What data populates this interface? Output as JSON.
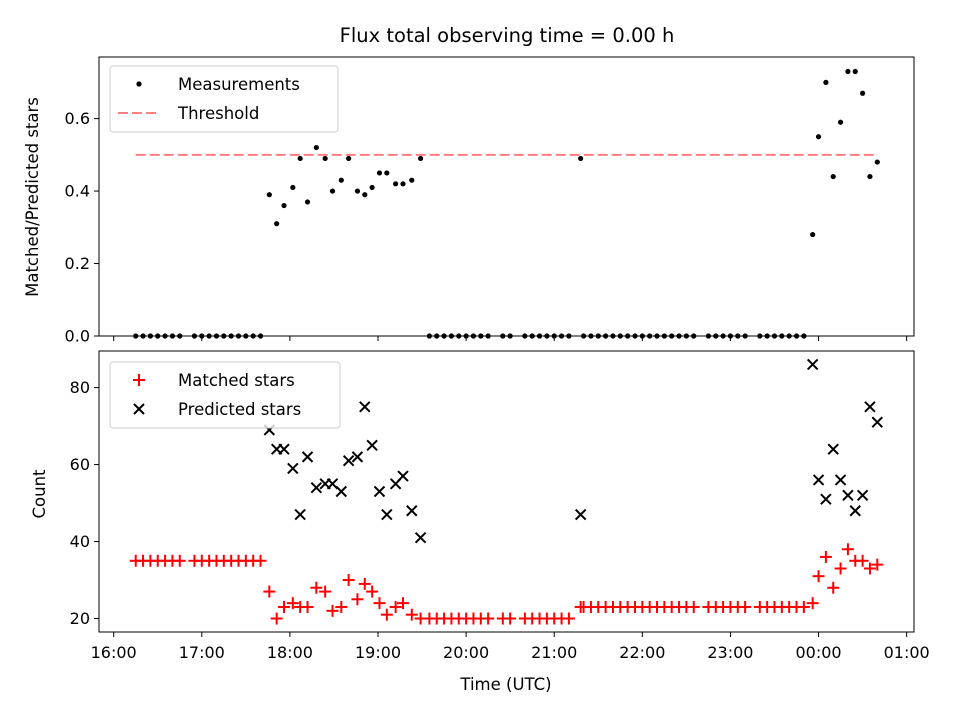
{
  "chart_data": [
    {
      "type": "scatter",
      "title": "Flux total observing time = 0.00 h",
      "xlabel": "",
      "ylabel": "Matched/Predicted stars",
      "ylim": [
        0,
        0.77
      ],
      "yticks": [
        0.0,
        0.2,
        0.4,
        0.6
      ],
      "xlim": [
        "15:50",
        "01:05"
      ],
      "grid": false,
      "legend": "top-left",
      "series": [
        {
          "name": "Measurements",
          "marker": "dot",
          "color": "#000000",
          "points": [
            [
              "16:15",
              0
            ],
            [
              "16:20",
              0
            ],
            [
              "16:25",
              0
            ],
            [
              "16:30",
              0
            ],
            [
              "16:35",
              0
            ],
            [
              "16:40",
              0
            ],
            [
              "16:45",
              0
            ],
            [
              "16:55",
              0
            ],
            [
              "17:00",
              0
            ],
            [
              "17:05",
              0
            ],
            [
              "17:10",
              0
            ],
            [
              "17:15",
              0
            ],
            [
              "17:20",
              0
            ],
            [
              "17:25",
              0
            ],
            [
              "17:30",
              0
            ],
            [
              "17:35",
              0
            ],
            [
              "17:40",
              0
            ],
            [
              "17:46",
              0.39
            ],
            [
              "17:51",
              0.31
            ],
            [
              "17:56",
              0.36
            ],
            [
              "18:02",
              0.41
            ],
            [
              "18:07",
              0.49
            ],
            [
              "18:12",
              0.37
            ],
            [
              "18:18",
              0.52
            ],
            [
              "18:24",
              0.49
            ],
            [
              "18:29",
              0.4
            ],
            [
              "18:35",
              0.43
            ],
            [
              "18:40",
              0.49
            ],
            [
              "18:46",
              0.4
            ],
            [
              "18:51",
              0.39
            ],
            [
              "18:56",
              0.41
            ],
            [
              "19:01",
              0.45
            ],
            [
              "19:06",
              0.45
            ],
            [
              "19:12",
              0.42
            ],
            [
              "19:17",
              0.42
            ],
            [
              "19:23",
              0.43
            ],
            [
              "19:29",
              0.49
            ],
            [
              "19:35",
              0
            ],
            [
              "19:40",
              0
            ],
            [
              "19:45",
              0
            ],
            [
              "19:50",
              0
            ],
            [
              "19:55",
              0
            ],
            [
              "20:00",
              0
            ],
            [
              "20:05",
              0
            ],
            [
              "20:10",
              0
            ],
            [
              "20:15",
              0
            ],
            [
              "20:25",
              0
            ],
            [
              "20:30",
              0
            ],
            [
              "20:40",
              0
            ],
            [
              "20:45",
              0
            ],
            [
              "20:50",
              0
            ],
            [
              "20:55",
              0
            ],
            [
              "21:00",
              0
            ],
            [
              "21:05",
              0
            ],
            [
              "21:10",
              0
            ],
            [
              "21:18",
              0.49
            ],
            [
              "21:20",
              0
            ],
            [
              "21:25",
              0
            ],
            [
              "21:30",
              0
            ],
            [
              "21:35",
              0
            ],
            [
              "21:40",
              0
            ],
            [
              "21:45",
              0
            ],
            [
              "21:50",
              0
            ],
            [
              "21:55",
              0
            ],
            [
              "22:00",
              0
            ],
            [
              "22:05",
              0
            ],
            [
              "22:10",
              0
            ],
            [
              "22:15",
              0
            ],
            [
              "22:20",
              0
            ],
            [
              "22:25",
              0
            ],
            [
              "22:30",
              0
            ],
            [
              "22:35",
              0
            ],
            [
              "22:45",
              0
            ],
            [
              "22:50",
              0
            ],
            [
              "22:55",
              0
            ],
            [
              "23:00",
              0
            ],
            [
              "23:05",
              0
            ],
            [
              "23:10",
              0
            ],
            [
              "23:20",
              0
            ],
            [
              "23:25",
              0
            ],
            [
              "23:30",
              0
            ],
            [
              "23:35",
              0
            ],
            [
              "23:40",
              0
            ],
            [
              "23:45",
              0
            ],
            [
              "23:50",
              0
            ],
            [
              "23:56",
              0.28
            ],
            [
              "24:00",
              0.55
            ],
            [
              "24:05",
              0.7
            ],
            [
              "24:10",
              0.44
            ],
            [
              "24:15",
              0.59
            ],
            [
              "24:20",
              0.73
            ],
            [
              "24:25",
              0.73
            ],
            [
              "24:30",
              0.67
            ],
            [
              "24:35",
              0.44
            ],
            [
              "24:40",
              0.48
            ]
          ]
        },
        {
          "name": "Threshold",
          "line": "dashed",
          "color": "#ff7f7f",
          "x": [
            "16:15",
            "24:40"
          ],
          "y": [
            0.5,
            0.5
          ]
        }
      ]
    },
    {
      "type": "scatter",
      "title": "",
      "xlabel": "Time (UTC)",
      "ylabel": "Count",
      "ylim": [
        16.5,
        89.5
      ],
      "yticks": [
        20,
        40,
        60,
        80
      ],
      "xticks": [
        "16:00",
        "17:00",
        "18:00",
        "19:00",
        "20:00",
        "21:00",
        "22:00",
        "23:00",
        "00:00",
        "01:00"
      ],
      "xtick_values": [
        "16:00",
        "17:00",
        "18:00",
        "19:00",
        "20:00",
        "21:00",
        "22:00",
        "23:00",
        "24:00",
        "25:00"
      ],
      "xlim": [
        "15:50",
        "01:05"
      ],
      "grid": false,
      "legend": "top-left",
      "series": [
        {
          "name": "Matched stars",
          "marker": "plus",
          "color": "#ff0000",
          "points": [
            [
              "16:15",
              35
            ],
            [
              "16:20",
              35
            ],
            [
              "16:25",
              35
            ],
            [
              "16:30",
              35
            ],
            [
              "16:35",
              35
            ],
            [
              "16:40",
              35
            ],
            [
              "16:45",
              35
            ],
            [
              "16:55",
              35
            ],
            [
              "17:00",
              35
            ],
            [
              "17:05",
              35
            ],
            [
              "17:10",
              35
            ],
            [
              "17:15",
              35
            ],
            [
              "17:20",
              35
            ],
            [
              "17:25",
              35
            ],
            [
              "17:30",
              35
            ],
            [
              "17:35",
              35
            ],
            [
              "17:40",
              35
            ],
            [
              "17:46",
              27
            ],
            [
              "17:51",
              20
            ],
            [
              "17:56",
              23
            ],
            [
              "18:02",
              24
            ],
            [
              "18:07",
              23
            ],
            [
              "18:12",
              23
            ],
            [
              "18:18",
              28
            ],
            [
              "18:24",
              27
            ],
            [
              "18:29",
              22
            ],
            [
              "18:35",
              23
            ],
            [
              "18:40",
              30
            ],
            [
              "18:46",
              25
            ],
            [
              "18:51",
              29
            ],
            [
              "18:56",
              27
            ],
            [
              "19:01",
              24
            ],
            [
              "19:06",
              21
            ],
            [
              "19:12",
              23
            ],
            [
              "19:17",
              24
            ],
            [
              "19:23",
              21
            ],
            [
              "19:29",
              20
            ],
            [
              "19:35",
              20
            ],
            [
              "19:40",
              20
            ],
            [
              "19:45",
              20
            ],
            [
              "19:50",
              20
            ],
            [
              "19:55",
              20
            ],
            [
              "20:00",
              20
            ],
            [
              "20:05",
              20
            ],
            [
              "20:10",
              20
            ],
            [
              "20:15",
              20
            ],
            [
              "20:25",
              20
            ],
            [
              "20:30",
              20
            ],
            [
              "20:40",
              20
            ],
            [
              "20:45",
              20
            ],
            [
              "20:50",
              20
            ],
            [
              "20:55",
              20
            ],
            [
              "21:00",
              20
            ],
            [
              "21:05",
              20
            ],
            [
              "21:10",
              20
            ],
            [
              "21:18",
              23
            ],
            [
              "21:20",
              23
            ],
            [
              "21:25",
              23
            ],
            [
              "21:30",
              23
            ],
            [
              "21:35",
              23
            ],
            [
              "21:40",
              23
            ],
            [
              "21:45",
              23
            ],
            [
              "21:50",
              23
            ],
            [
              "21:55",
              23
            ],
            [
              "22:00",
              23
            ],
            [
              "22:05",
              23
            ],
            [
              "22:10",
              23
            ],
            [
              "22:15",
              23
            ],
            [
              "22:20",
              23
            ],
            [
              "22:25",
              23
            ],
            [
              "22:30",
              23
            ],
            [
              "22:35",
              23
            ],
            [
              "22:45",
              23
            ],
            [
              "22:50",
              23
            ],
            [
              "22:55",
              23
            ],
            [
              "23:00",
              23
            ],
            [
              "23:05",
              23
            ],
            [
              "23:10",
              23
            ],
            [
              "23:20",
              23
            ],
            [
              "23:25",
              23
            ],
            [
              "23:30",
              23
            ],
            [
              "23:35",
              23
            ],
            [
              "23:40",
              23
            ],
            [
              "23:45",
              23
            ],
            [
              "23:50",
              23
            ],
            [
              "23:56",
              24
            ],
            [
              "24:00",
              31
            ],
            [
              "24:05",
              36
            ],
            [
              "24:10",
              28
            ],
            [
              "24:15",
              33
            ],
            [
              "24:20",
              38
            ],
            [
              "24:25",
              35
            ],
            [
              "24:30",
              35
            ],
            [
              "24:35",
              33
            ],
            [
              "24:40",
              34
            ]
          ]
        },
        {
          "name": "Predicted stars",
          "marker": "x",
          "color": "#000000",
          "points": [
            [
              "17:46",
              69
            ],
            [
              "17:51",
              64
            ],
            [
              "17:56",
              64
            ],
            [
              "18:02",
              59
            ],
            [
              "18:07",
              47
            ],
            [
              "18:12",
              62
            ],
            [
              "18:18",
              54
            ],
            [
              "18:24",
              55
            ],
            [
              "18:29",
              55
            ],
            [
              "18:35",
              53
            ],
            [
              "18:40",
              61
            ],
            [
              "18:46",
              62
            ],
            [
              "18:51",
              75
            ],
            [
              "18:56",
              65
            ],
            [
              "19:01",
              53
            ],
            [
              "19:06",
              47
            ],
            [
              "19:12",
              55
            ],
            [
              "19:17",
              57
            ],
            [
              "19:23",
              48
            ],
            [
              "19:29",
              41
            ],
            [
              "21:18",
              47
            ],
            [
              "23:56",
              86
            ],
            [
              "24:00",
              56
            ],
            [
              "24:05",
              51
            ],
            [
              "24:10",
              64
            ],
            [
              "24:15",
              56
            ],
            [
              "24:20",
              52
            ],
            [
              "24:25",
              48
            ],
            [
              "24:30",
              52
            ],
            [
              "24:35",
              75
            ],
            [
              "24:40",
              71
            ]
          ]
        }
      ]
    }
  ]
}
